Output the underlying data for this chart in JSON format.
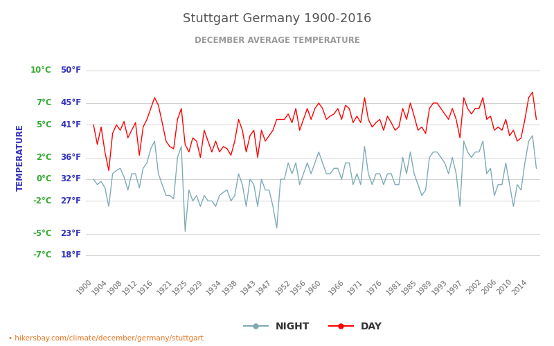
{
  "title": "Stuttgart Germany 1900-2016",
  "subtitle": "DECEMBER AVERAGE TEMPERATURE",
  "ylabel": "TEMPERATURE",
  "xlabel_url": "hikersbay.com/climate/december/germany/stuttgart",
  "legend_night": "NIGHT",
  "legend_day": "DAY",
  "color_day": "#ff0000",
  "color_night": "#7eaab8",
  "background_color": "#ffffff",
  "grid_color": "#d0d0d0",
  "title_color": "#555555",
  "subtitle_color": "#999999",
  "ylabel_color": "#3333bb",
  "ytick_celsius_color": "#33aa33",
  "ytick_fahr_color": "#3333bb",
  "ylim_celsius": [
    -8.5,
    12.5
  ],
  "celsius_ticks": [
    -7,
    -5,
    -2,
    0,
    2,
    5,
    7,
    10
  ],
  "fahr_ticks": [
    18,
    23,
    27,
    32,
    36,
    41,
    45,
    50
  ],
  "years": [
    1900,
    1901,
    1902,
    1903,
    1904,
    1905,
    1906,
    1907,
    1908,
    1909,
    1910,
    1911,
    1912,
    1913,
    1914,
    1915,
    1916,
    1917,
    1918,
    1919,
    1920,
    1921,
    1922,
    1923,
    1924,
    1925,
    1926,
    1927,
    1928,
    1929,
    1930,
    1931,
    1932,
    1933,
    1934,
    1935,
    1936,
    1937,
    1938,
    1939,
    1940,
    1941,
    1942,
    1943,
    1944,
    1945,
    1946,
    1947,
    1948,
    1949,
    1950,
    1951,
    1952,
    1953,
    1954,
    1955,
    1956,
    1957,
    1958,
    1959,
    1960,
    1961,
    1962,
    1963,
    1964,
    1965,
    1966,
    1967,
    1968,
    1969,
    1970,
    1971,
    1972,
    1973,
    1974,
    1975,
    1976,
    1977,
    1978,
    1979,
    1980,
    1981,
    1982,
    1983,
    1984,
    1985,
    1986,
    1987,
    1988,
    1989,
    1990,
    1991,
    1992,
    1993,
    1994,
    1995,
    1996,
    1997,
    1998,
    1999,
    2000,
    2001,
    2002,
    2003,
    2004,
    2005,
    2006,
    2007,
    2008,
    2009,
    2010,
    2011,
    2012,
    2013,
    2014,
    2015,
    2016
  ],
  "day_temps": [
    5.0,
    3.2,
    4.8,
    2.5,
    0.8,
    4.2,
    5.0,
    4.5,
    5.3,
    3.8,
    4.5,
    5.2,
    2.2,
    4.8,
    5.5,
    6.5,
    7.5,
    6.8,
    5.2,
    3.5,
    3.0,
    2.8,
    5.5,
    6.5,
    3.2,
    2.5,
    3.8,
    3.5,
    2.0,
    4.5,
    3.5,
    2.5,
    3.5,
    2.5,
    3.0,
    2.8,
    2.2,
    3.5,
    5.5,
    4.5,
    2.5,
    4.0,
    4.5,
    2.0,
    4.5,
    3.5,
    4.0,
    4.5,
    5.5,
    5.5,
    5.5,
    6.0,
    5.2,
    6.5,
    4.5,
    5.5,
    6.5,
    5.5,
    6.5,
    7.0,
    6.5,
    5.5,
    5.8,
    6.0,
    6.5,
    5.5,
    6.8,
    6.5,
    5.2,
    5.8,
    5.2,
    7.5,
    5.5,
    4.8,
    5.2,
    5.5,
    4.5,
    5.8,
    5.2,
    4.5,
    4.8,
    6.5,
    5.5,
    7.0,
    5.8,
    4.5,
    4.8,
    4.2,
    6.5,
    7.0,
    7.0,
    6.5,
    6.0,
    5.5,
    6.5,
    5.5,
    3.8,
    7.5,
    6.5,
    6.0,
    6.5,
    6.5,
    7.5,
    5.5,
    5.8,
    4.5,
    4.8,
    4.5,
    5.5,
    4.0,
    4.5,
    3.5,
    3.8,
    5.5,
    7.5,
    8.0,
    5.5
  ],
  "night_temps": [
    0.0,
    -0.5,
    -0.2,
    -0.8,
    -2.5,
    0.5,
    0.8,
    1.0,
    0.2,
    -1.0,
    0.5,
    0.5,
    -0.8,
    1.0,
    1.5,
    2.8,
    3.5,
    0.5,
    -0.5,
    -1.5,
    -1.5,
    -1.8,
    2.0,
    3.0,
    -4.8,
    -1.0,
    -2.0,
    -1.5,
    -2.5,
    -1.5,
    -2.0,
    -2.0,
    -2.5,
    -1.5,
    -1.2,
    -1.0,
    -2.0,
    -1.5,
    0.5,
    -0.5,
    -2.5,
    0.0,
    -0.5,
    -2.5,
    0.0,
    -1.0,
    -1.0,
    -2.5,
    -4.5,
    0.0,
    0.0,
    1.5,
    0.5,
    1.5,
    -0.5,
    0.5,
    1.5,
    0.5,
    1.5,
    2.5,
    1.5,
    0.5,
    0.5,
    1.0,
    1.0,
    0.0,
    1.5,
    1.5,
    -0.5,
    0.5,
    -0.5,
    3.0,
    0.5,
    -0.5,
    0.5,
    0.5,
    -0.5,
    0.5,
    0.5,
    -0.5,
    -0.5,
    2.0,
    0.5,
    2.5,
    0.5,
    -0.5,
    -1.5,
    -1.0,
    2.0,
    2.5,
    2.5,
    2.0,
    1.5,
    0.5,
    2.0,
    0.5,
    -2.5,
    3.5,
    2.5,
    2.0,
    2.5,
    2.5,
    3.5,
    0.5,
    1.0,
    -1.5,
    -0.5,
    -0.5,
    1.5,
    -0.5,
    -2.5,
    -0.5,
    -1.0,
    1.5,
    3.5,
    4.0,
    1.0
  ],
  "x_ticks": [
    1900,
    1904,
    1908,
    1912,
    1916,
    1921,
    1925,
    1929,
    1934,
    1938,
    1943,
    1947,
    1952,
    1956,
    1960,
    1966,
    1971,
    1976,
    1981,
    1985,
    1989,
    1993,
    1997,
    2002,
    2006,
    2010,
    2014
  ],
  "xlim": [
    1898,
    2017
  ]
}
